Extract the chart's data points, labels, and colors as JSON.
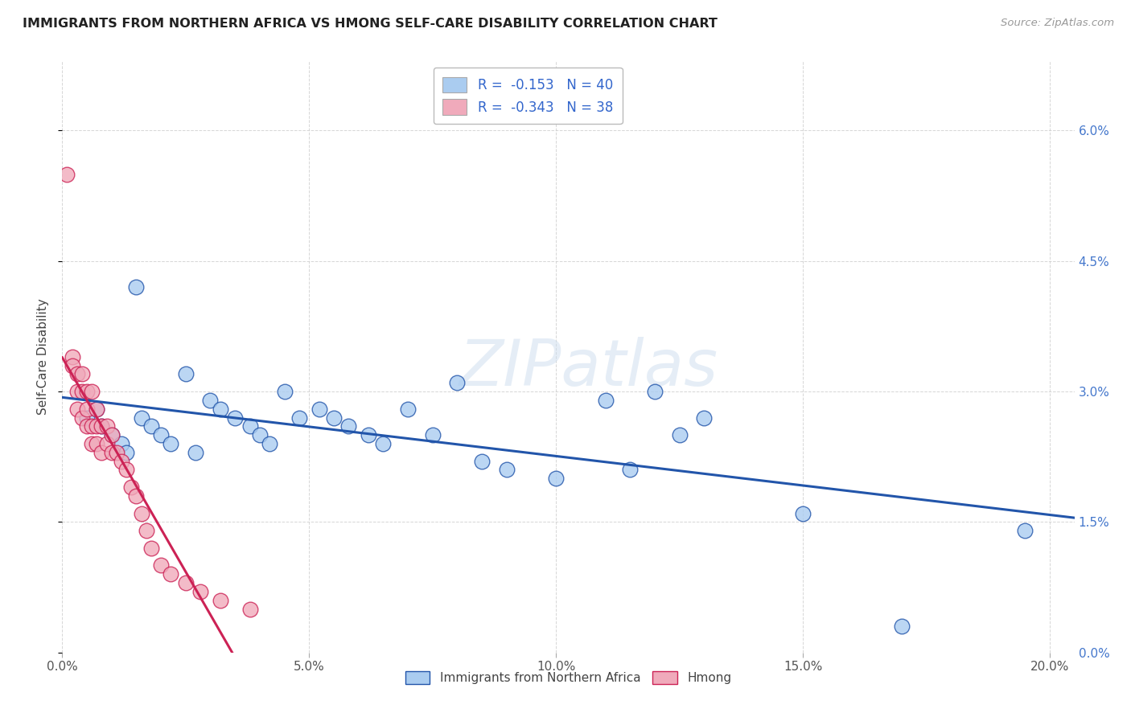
{
  "title": "IMMIGRANTS FROM NORTHERN AFRICA VS HMONG SELF-CARE DISABILITY CORRELATION CHART",
  "source": "Source: ZipAtlas.com",
  "xlabel_tick_vals": [
    0.0,
    0.05,
    0.1,
    0.15,
    0.2
  ],
  "ylabel_tick_vals": [
    0.0,
    0.015,
    0.03,
    0.045,
    0.06
  ],
  "ylabel": "Self-Care Disability",
  "legend_labels": [
    "Immigrants from Northern Africa",
    "Hmong"
  ],
  "blue_R": "-0.153",
  "blue_N": "40",
  "pink_R": "-0.343",
  "pink_N": "38",
  "blue_scatter_x": [
    0.005,
    0.007,
    0.008,
    0.01,
    0.012,
    0.013,
    0.015,
    0.016,
    0.018,
    0.02,
    0.022,
    0.025,
    0.027,
    0.03,
    0.032,
    0.035,
    0.038,
    0.04,
    0.042,
    0.045,
    0.048,
    0.052,
    0.055,
    0.058,
    0.062,
    0.065,
    0.07,
    0.075,
    0.08,
    0.085,
    0.09,
    0.1,
    0.11,
    0.115,
    0.12,
    0.125,
    0.13,
    0.15,
    0.17,
    0.195
  ],
  "blue_scatter_y": [
    0.027,
    0.028,
    0.026,
    0.025,
    0.024,
    0.023,
    0.042,
    0.027,
    0.026,
    0.025,
    0.024,
    0.032,
    0.023,
    0.029,
    0.028,
    0.027,
    0.026,
    0.025,
    0.024,
    0.03,
    0.027,
    0.028,
    0.027,
    0.026,
    0.025,
    0.024,
    0.028,
    0.025,
    0.031,
    0.022,
    0.021,
    0.02,
    0.029,
    0.021,
    0.03,
    0.025,
    0.027,
    0.016,
    0.003,
    0.014
  ],
  "pink_scatter_x": [
    0.001,
    0.002,
    0.002,
    0.003,
    0.003,
    0.003,
    0.004,
    0.004,
    0.004,
    0.005,
    0.005,
    0.005,
    0.006,
    0.006,
    0.006,
    0.007,
    0.007,
    0.007,
    0.008,
    0.008,
    0.009,
    0.009,
    0.01,
    0.01,
    0.011,
    0.012,
    0.013,
    0.014,
    0.015,
    0.016,
    0.017,
    0.018,
    0.02,
    0.022,
    0.025,
    0.028,
    0.032,
    0.038
  ],
  "pink_scatter_y": [
    0.055,
    0.034,
    0.033,
    0.032,
    0.03,
    0.028,
    0.032,
    0.03,
    0.027,
    0.03,
    0.028,
    0.026,
    0.03,
    0.026,
    0.024,
    0.028,
    0.026,
    0.024,
    0.026,
    0.023,
    0.026,
    0.024,
    0.025,
    0.023,
    0.023,
    0.022,
    0.021,
    0.019,
    0.018,
    0.016,
    0.014,
    0.012,
    0.01,
    0.009,
    0.008,
    0.007,
    0.006,
    0.005
  ],
  "blue_color": "#aaccf0",
  "pink_color": "#f0aabb",
  "blue_line_color": "#2255aa",
  "pink_line_color": "#cc2255",
  "grid_color": "#cccccc",
  "background_color": "#ffffff",
  "watermark": "ZIPatlas",
  "xlim": [
    0.0,
    0.205
  ],
  "ylim": [
    0.0,
    0.068
  ]
}
